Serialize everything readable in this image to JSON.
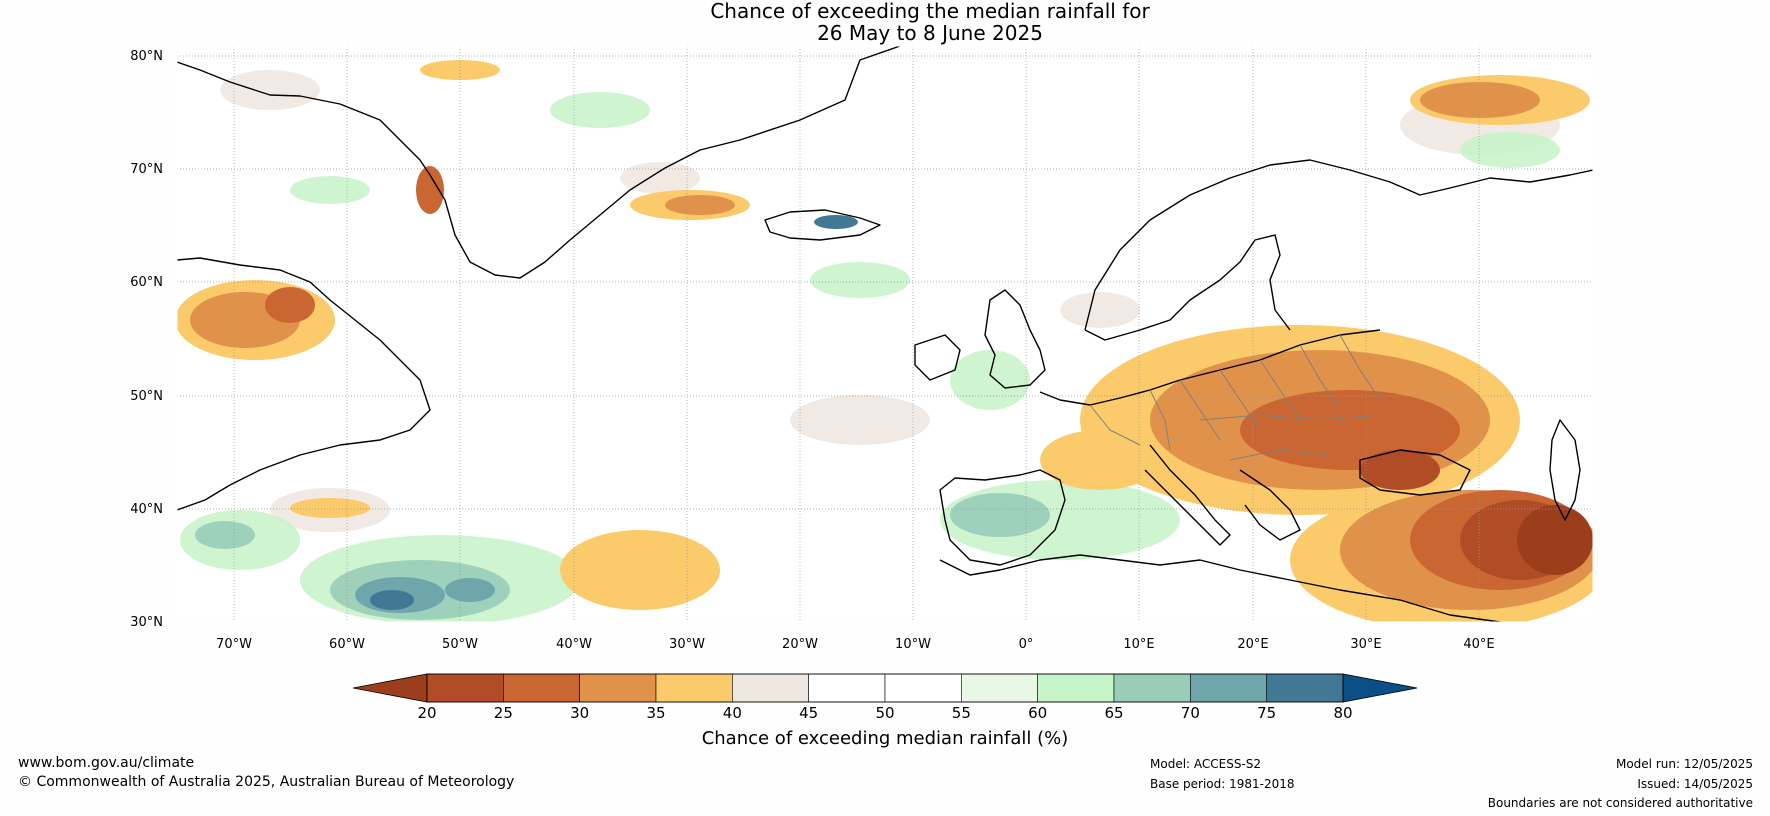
{
  "title": {
    "line1": "Chance of exceeding the median rainfall for",
    "line2": "26 May to 8 June 2025"
  },
  "map": {
    "projection": "cylindrical",
    "lat_range": [
      30,
      80
    ],
    "lon_range": [
      -75,
      50
    ],
    "lat_labels": [
      "30°N",
      "40°N",
      "50°N",
      "60°N",
      "70°N",
      "80°N"
    ],
    "lon_labels": [
      "70°W",
      "60°W",
      "50°W",
      "40°W",
      "30°W",
      "20°W",
      "10°W",
      "0°",
      "10°E",
      "20°E",
      "30°E",
      "40°E"
    ]
  },
  "colorbar": {
    "label": "Chance of exceeding median rainfall (%)",
    "ticks": [
      "20",
      "25",
      "30",
      "35",
      "40",
      "45",
      "50",
      "55",
      "60",
      "65",
      "70",
      "75",
      "80"
    ],
    "under_color": "#9c3d1c",
    "over_color": "#0c4e86",
    "colors": [
      "#b14d26",
      "#c96631",
      "#e0914a",
      "#fbca6a",
      "#efe8e1",
      "#ffffff",
      "#ffffff",
      "#e8f7e6",
      "#c6f3c8",
      "#99cdb8",
      "#6fa6ab",
      "#417894"
    ]
  },
  "footer": {
    "website": "www.bom.gov.au/climate",
    "copyright": "© Commonwealth of Australia 2025, Australian Bureau of Meteorology",
    "model": "Model: ACCESS-S2",
    "base_period": "Base period: 1981-2018",
    "model_run": "Model run: 12/05/2025",
    "issued": "Issued: 14/05/2025",
    "disclaimer": "Boundaries are not considered authoritative"
  }
}
